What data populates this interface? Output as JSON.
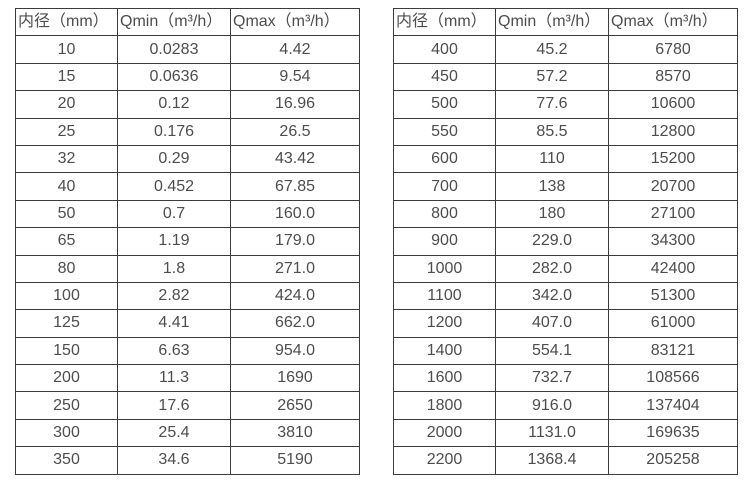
{
  "colors": {
    "background": "#ffffff",
    "border": "#3c3c3c",
    "text": "#4d4d4d"
  },
  "column_keys": [
    "diameter",
    "qmin",
    "qmax"
  ],
  "tables": [
    {
      "name": "flow-rate-table-small-diameters",
      "headers": [
        "内径（mm）",
        "Qmin（m³/h）",
        "Qmax（m³/h）"
      ],
      "rows": [
        [
          "10",
          "0.0283",
          "4.42"
        ],
        [
          "15",
          "0.0636",
          "9.54"
        ],
        [
          "20",
          "0.12",
          "16.96"
        ],
        [
          "25",
          "0.176",
          "26.5"
        ],
        [
          "32",
          "0.29",
          "43.42"
        ],
        [
          "40",
          "0.452",
          "67.85"
        ],
        [
          "50",
          "0.7",
          "160.0"
        ],
        [
          "65",
          "1.19",
          "179.0"
        ],
        [
          "80",
          "1.8",
          "271.0"
        ],
        [
          "100",
          "2.82",
          "424.0"
        ],
        [
          "125",
          "4.41",
          "662.0"
        ],
        [
          "150",
          "6.63",
          "954.0"
        ],
        [
          "200",
          "11.3",
          "1690"
        ],
        [
          "250",
          "17.6",
          "2650"
        ],
        [
          "300",
          "25.4",
          "3810"
        ],
        [
          "350",
          "34.6",
          "5190"
        ]
      ]
    },
    {
      "name": "flow-rate-table-large-diameters",
      "headers": [
        "内径（mm）",
        "Qmin（m³/h）",
        "Qmax（m³/h）"
      ],
      "rows": [
        [
          "400",
          "45.2",
          "6780"
        ],
        [
          "450",
          "57.2",
          "8570"
        ],
        [
          "500",
          "77.6",
          "10600"
        ],
        [
          "550",
          "85.5",
          "12800"
        ],
        [
          "600",
          "110",
          "15200"
        ],
        [
          "700",
          "138",
          "20700"
        ],
        [
          "800",
          "180",
          "27100"
        ],
        [
          "900",
          "229.0",
          "34300"
        ],
        [
          "1000",
          "282.0",
          "42400"
        ],
        [
          "1100",
          "342.0",
          "51300"
        ],
        [
          "1200",
          "407.0",
          "61000"
        ],
        [
          "1400",
          "554.1",
          "83121"
        ],
        [
          "1600",
          "732.7",
          "108566"
        ],
        [
          "1800",
          "916.0",
          "137404"
        ],
        [
          "2000",
          "1131.0",
          "169635"
        ],
        [
          "2200",
          "1368.4",
          "205258"
        ]
      ]
    }
  ]
}
